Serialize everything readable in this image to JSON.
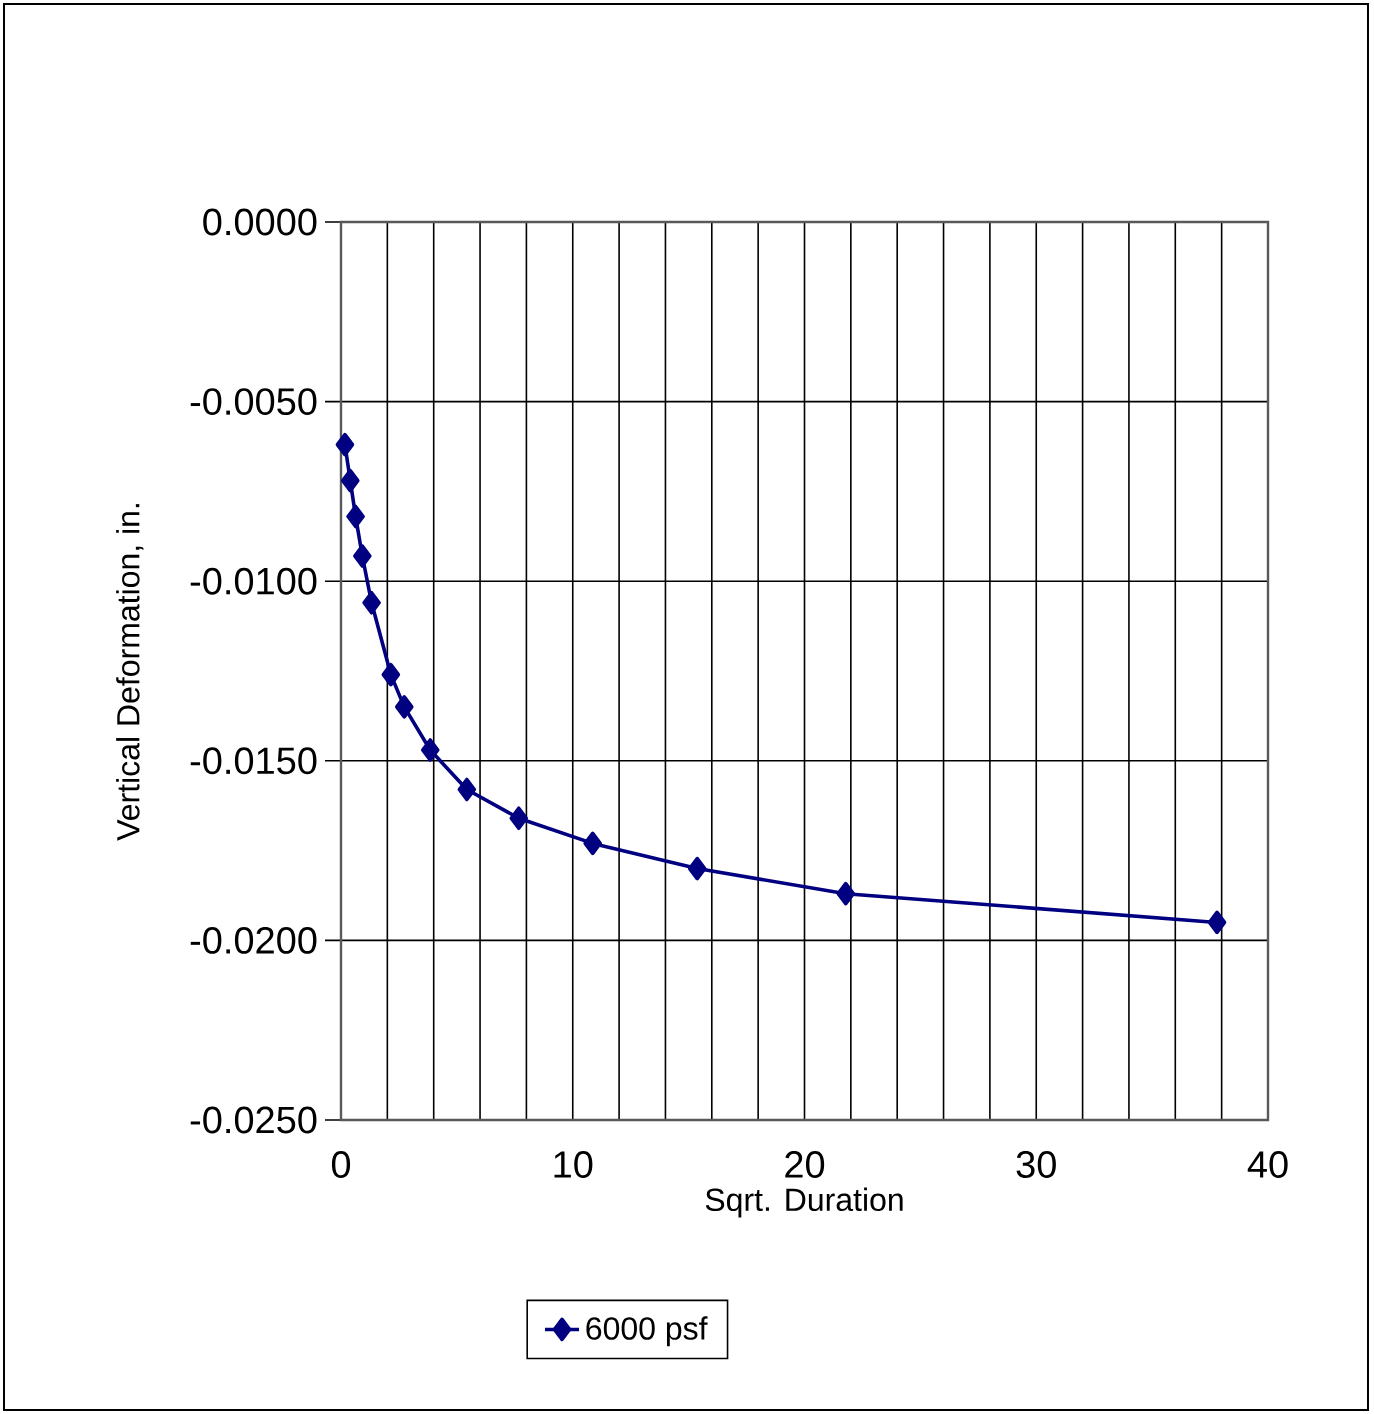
{
  "chart_data": {
    "type": "line",
    "xlabel": "Sqrt. Duration",
    "ylabel": "Vertical Deformation, in.",
    "x": [
      0.17,
      0.4,
      0.63,
      0.92,
      1.32,
      2.15,
      2.73,
      3.85,
      5.43,
      7.67,
      10.86,
      15.37,
      21.78,
      37.8
    ],
    "series": [
      {
        "name": "6000 psf",
        "color": "#000080",
        "values": [
          -0.0062,
          -0.0072,
          -0.0082,
          -0.0093,
          -0.0106,
          -0.0126,
          -0.0135,
          -0.0147,
          -0.0158,
          -0.0166,
          -0.0173,
          -0.018,
          -0.0187,
          -0.0195
        ]
      }
    ],
    "xlim": [
      0,
      40
    ],
    "ylim": [
      -0.025,
      0
    ],
    "xticks": [
      0,
      {
        "value": 2,
        "label": null
      },
      {
        "value": 4,
        "label": null
      },
      {
        "value": 6,
        "label": null
      },
      {
        "value": 8,
        "label": null
      },
      10,
      {
        "value": 12,
        "label": null
      },
      {
        "value": 14,
        "label": null
      },
      {
        "value": 16,
        "label": null
      },
      {
        "value": 18,
        "label": null
      },
      20,
      {
        "value": 22,
        "label": null
      },
      {
        "value": 24,
        "label": null
      },
      {
        "value": 26,
        "label": null
      },
      {
        "value": 28,
        "label": null
      },
      30,
      {
        "value": 32,
        "label": null
      },
      {
        "value": 34,
        "label": null
      },
      {
        "value": 36,
        "label": null
      },
      {
        "value": 38,
        "label": null
      },
      40
    ],
    "yticks": [
      {
        "value": -0.025,
        "label": "-0.0250"
      },
      {
        "value": -0.02,
        "label": "-0.0200"
      },
      {
        "value": -0.015,
        "label": "-0.0150"
      },
      {
        "value": -0.01,
        "label": "-0.0100"
      },
      {
        "value": -0.005,
        "label": "-0.0050"
      },
      {
        "value": 0,
        "label": "0.0000"
      }
    ],
    "grid": true,
    "legend": "bottom",
    "marker": "diamond",
    "line_style": "solid"
  }
}
